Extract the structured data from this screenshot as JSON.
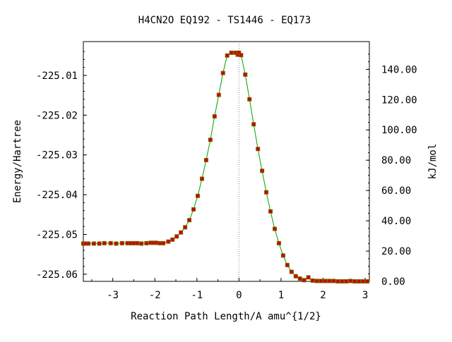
{
  "chart_data": {
    "type": "scatter",
    "title": "H4CN2O   EQ192 - TS1446 - EQ173",
    "xlabel": "Reaction Path Length/A amu^{1/2}",
    "ylabel": "Energy/Hartree",
    "y2label": "kJ/mol",
    "xlim": [
      -3.7,
      3.1
    ],
    "ylim": [
      -225.0618,
      -225.0015
    ],
    "x_ticks": [
      "-3",
      "-2",
      "-1",
      "0",
      "1",
      "2",
      "3"
    ],
    "y_ticks": [
      "-225.01",
      "-225.02",
      "-225.03",
      "-225.04",
      "-225.05",
      "-225.06"
    ],
    "y2_ticks": [
      "0.00",
      "20.00",
      "40.00",
      "60.00",
      "80.00",
      "100.00",
      "120.00",
      "140.00"
    ],
    "ts_x": 0.0,
    "colors": {
      "line": "#00a000",
      "marker": "#cc0000",
      "marker_edge": "#806000",
      "ts_line": "#888888"
    },
    "series": [
      {
        "x": [
          -3.7,
          -3.65,
          -3.58,
          -3.45,
          -3.32,
          -3.2,
          -3.05,
          -2.92,
          -2.78,
          -2.65,
          -2.58,
          -2.5,
          -2.42,
          -2.32,
          -2.2,
          -2.1,
          -2.03,
          -1.97,
          -1.88,
          -1.8,
          -1.68,
          -1.58,
          -1.48,
          -1.38,
          -1.28,
          -1.18,
          -1.08,
          -0.98,
          -0.88,
          -0.78,
          -0.68,
          -0.58,
          -0.48,
          -0.38,
          -0.28,
          -0.18,
          -0.08,
          -0.03,
          0.0,
          0.05,
          0.15,
          0.25,
          0.35,
          0.45,
          0.55,
          0.65,
          0.75,
          0.85,
          0.95,
          1.05,
          1.15,
          1.25,
          1.35,
          1.45,
          1.55,
          1.65,
          1.75,
          1.85,
          1.95,
          2.05,
          2.15,
          2.25,
          2.35,
          2.45,
          2.55,
          2.65,
          2.75,
          2.85,
          2.95,
          3.05
        ],
        "y": [
          -225.0523,
          -225.0523,
          -225.0523,
          -225.0523,
          -225.0523,
          -225.0522,
          -225.0522,
          -225.0523,
          -225.0522,
          -225.0522,
          -225.0522,
          -225.0522,
          -225.0522,
          -225.0523,
          -225.0522,
          -225.0521,
          -225.0521,
          -225.0521,
          -225.0522,
          -225.0522,
          -225.0518,
          -225.0513,
          -225.0505,
          -225.0495,
          -225.0482,
          -225.0464,
          -225.0437,
          -225.0403,
          -225.036,
          -225.0313,
          -225.0262,
          -225.0203,
          -225.0149,
          -225.0094,
          -225.005,
          -225.0043,
          -225.0043,
          -225.0048,
          -225.0043,
          -225.0049,
          -225.0098,
          -225.016,
          -225.0223,
          -225.0285,
          -225.034,
          -225.0394,
          -225.0442,
          -225.0486,
          -225.0522,
          -225.0553,
          -225.0577,
          -225.0594,
          -225.0605,
          -225.0611,
          -225.0615,
          -225.0608,
          -225.0616,
          -225.0617,
          -225.0617,
          -225.0617,
          -225.0617,
          -225.0617,
          -225.0618,
          -225.0618,
          -225.0618,
          -225.0617,
          -225.0618,
          -225.0618,
          -225.0618,
          -225.0618
        ]
      }
    ]
  }
}
